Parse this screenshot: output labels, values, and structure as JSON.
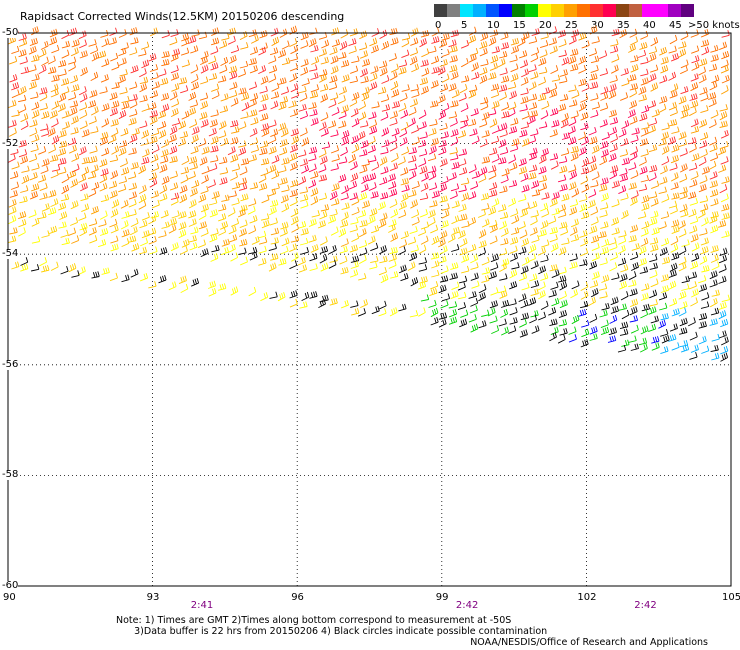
{
  "title": "Rapidsact Corrected Winds(12.5KM) 20150206 descending",
  "legend": {
    "unit_label": ">50 knots",
    "tick_labels": [
      "0",
      "5",
      "10",
      "15",
      "20",
      "25",
      "30",
      "35",
      "40",
      "45"
    ],
    "colors": [
      "#404040",
      "#808080",
      "#00e5ff",
      "#00b0ff",
      "#0055ff",
      "#0000ff",
      "#008000",
      "#00d000",
      "#ffff00",
      "#ffd000",
      "#ffa000",
      "#ff7000",
      "#ff3030",
      "#ff0050",
      "#8b4513",
      "#c06040",
      "#ff00ff",
      "#ff00ff",
      "#a000c0",
      "#600080"
    ]
  },
  "chart_data": {
    "type": "wind-barb-map",
    "lon_ticks": [
      "90",
      "93",
      "96",
      "99",
      "102",
      "105"
    ],
    "lat_ticks": [
      "-50",
      "-52",
      "-54",
      "-56",
      "-58",
      "-60"
    ],
    "time_labels": [
      {
        "lon": 94,
        "text": "2:41"
      },
      {
        "lon": 99.5,
        "text": "2:42"
      },
      {
        "lon": 103.2,
        "text": "2:42"
      }
    ],
    "lon_range": [
      90,
      105
    ],
    "lat_range": [
      -60,
      -50
    ],
    "grid": true
  },
  "notes": {
    "line1": "Note: 1) Times are GMT 2)Times along bottom correspond to measurement at -50S",
    "line2": "3)Data buffer is 22 hrs from 20150206 4) Black circles indicate possible contamination"
  },
  "credit": "NOAA/NESDIS/Office of Research and Applications"
}
